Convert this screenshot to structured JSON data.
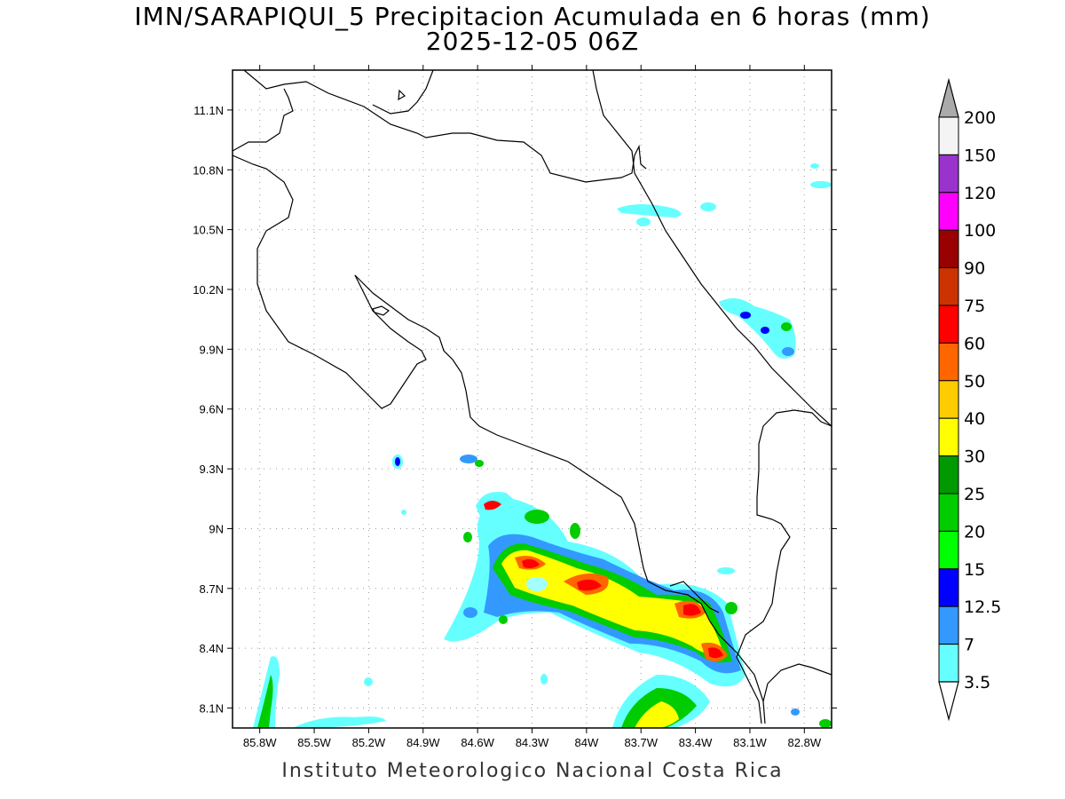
{
  "title_line1": "IMN/SARAPIQUI_5 Precipitacion Acumulada en 6 horas (mm)",
  "title_line2": "2025-12-05 06Z",
  "footer": "Instituto Meteorologico Nacional Costa Rica",
  "map": {
    "lon_range": [
      -85.95,
      -82.65
    ],
    "lat_range": [
      8.0,
      11.3
    ],
    "lon_ticks": [
      "85.8W",
      "85.5W",
      "85.2W",
      "84.9W",
      "84.6W",
      "84.3W",
      "84W",
      "83.7W",
      "83.4W",
      "83.1W",
      "82.8W"
    ],
    "lat_ticks": [
      "11.1N",
      "10.8N",
      "10.5N",
      "10.2N",
      "9.9N",
      "9.6N",
      "9.3N",
      "9N",
      "8.7N",
      "8.4N",
      "8.1N"
    ],
    "grid": true
  },
  "colorbar": {
    "labels": [
      "200",
      "150",
      "120",
      "100",
      "90",
      "75",
      "60",
      "50",
      "40",
      "30",
      "25",
      "20",
      "15",
      "12.5",
      "7",
      "3.5"
    ],
    "colors": [
      "#f4f4f4",
      "#9933cc",
      "#ff00ff",
      "#990000",
      "#cc3300",
      "#ff0000",
      "#ff6600",
      "#ffcc00",
      "#ffff00",
      "#009900",
      "#00cc00",
      "#00ff00",
      "#0000ff",
      "#3399ff",
      "#66ffff"
    ],
    "over_color": "#aaaaaa",
    "under_color": "#ffffff"
  }
}
